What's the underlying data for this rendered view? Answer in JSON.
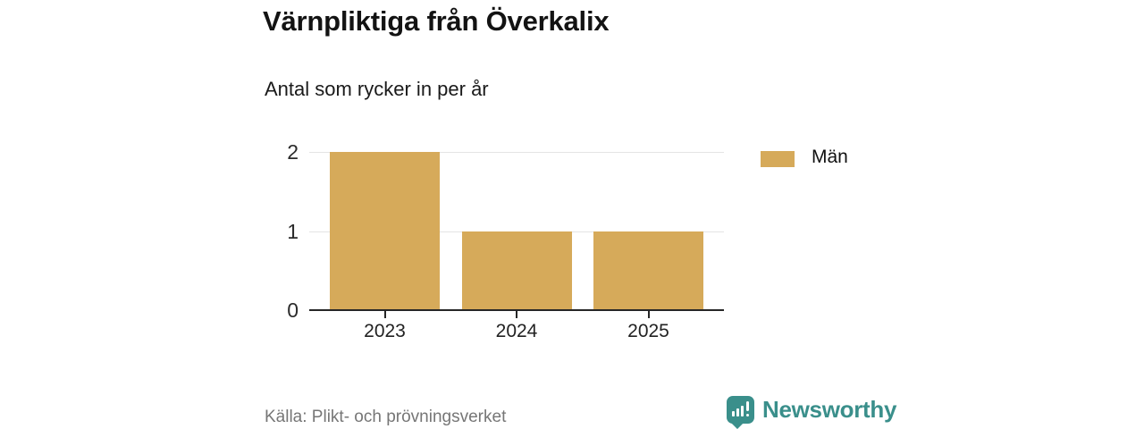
{
  "header": {
    "title": "Värnpliktiga från Överkalix",
    "subtitle": "Antal som rycker in per år"
  },
  "legend": {
    "items": [
      {
        "label": "Män",
        "color": "#d6aa5a"
      }
    ]
  },
  "footer": {
    "source": "Källa: Plikt- och prövningsverket",
    "brand": "Newsworthy",
    "brand_color": "#3a8f8b"
  },
  "chart_data": {
    "type": "bar",
    "title": "Värnpliktiga från Överkalix",
    "subtitle": "Antal som rycker in per år",
    "categories": [
      "2023",
      "2024",
      "2025"
    ],
    "series": [
      {
        "name": "Män",
        "color": "#d6aa5a",
        "values": [
          2,
          1,
          1
        ]
      }
    ],
    "xlabel": "",
    "ylabel": "",
    "yticks": [
      0,
      1,
      2
    ],
    "ylim": [
      0,
      2
    ],
    "grid": true,
    "legend_position": "right-of-plot-top",
    "source": "Källa: Plikt- och prövningsverket"
  }
}
